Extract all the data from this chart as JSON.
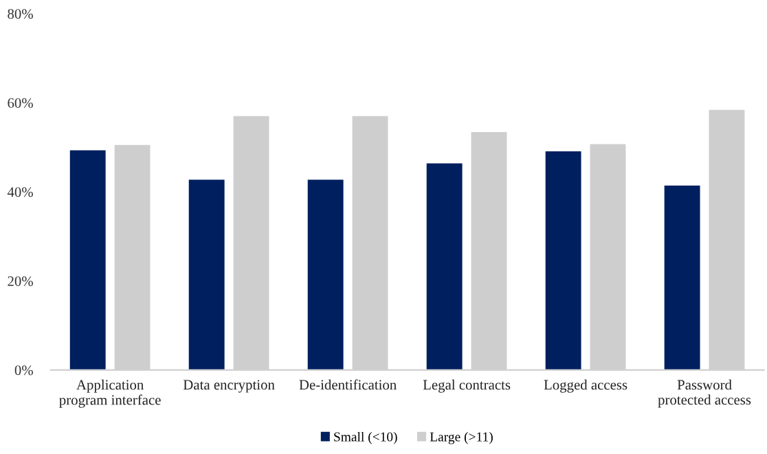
{
  "chart_data": {
    "type": "bar",
    "categories": [
      "Application program interface",
      "Data encryption",
      "De-identification",
      "Legal contracts",
      "Logged access",
      "Password protected access"
    ],
    "series": [
      {
        "name": "Small (<10)",
        "color": "#001f5f",
        "values": [
          49.3,
          42.7,
          42.7,
          46.4,
          49.1,
          41.4
        ]
      },
      {
        "name": "Large (>11)",
        "color": "#cfcecf",
        "values": [
          50.5,
          57.0,
          57.0,
          53.4,
          50.7,
          58.4
        ]
      }
    ],
    "ylim": [
      0,
      80
    ],
    "yticks": [
      {
        "value": 0,
        "label": "0%"
      },
      {
        "value": 20,
        "label": "20%"
      },
      {
        "value": 40,
        "label": "40%"
      },
      {
        "value": 60,
        "label": "60%"
      },
      {
        "value": 80,
        "label": "80%"
      }
    ],
    "grid": false,
    "legend": "bottom"
  }
}
